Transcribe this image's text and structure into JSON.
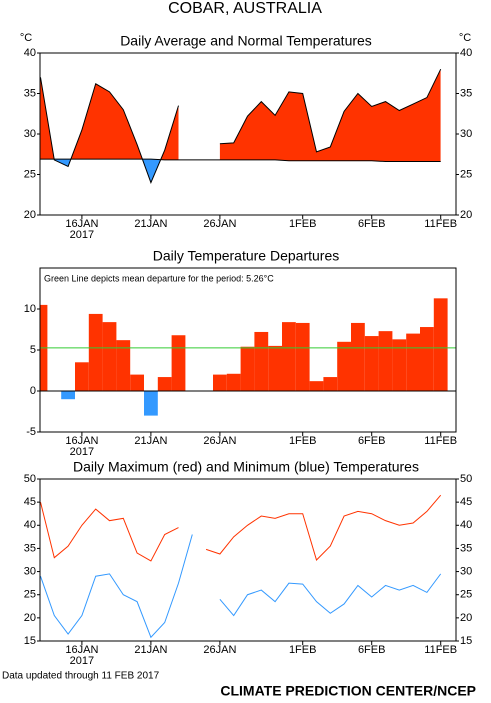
{
  "title": "COBAR, AUSTRALIA",
  "footer_note": "Data updated through 11 FEB 2017",
  "footer_credit": "CLIMATE PREDICTION CENTER/NCEP",
  "chart_data": [
    {
      "type": "departure_area",
      "title": "Daily Average and Normal Temperatures",
      "y_unit_label": "°C",
      "categories": [
        null,
        null,
        null,
        "16JAN",
        null,
        null,
        null,
        null,
        "21JAN",
        null,
        null,
        null,
        null,
        "26JAN",
        null,
        null,
        null,
        null,
        null,
        "1FEB",
        null,
        null,
        null,
        null,
        "6FEB",
        null,
        null,
        null,
        null,
        "11FEB"
      ],
      "year_label": "2017",
      "series": [
        {
          "color": "#000000",
          "values": [
            37,
            26.8,
            26,
            30.5,
            36.2,
            35.2,
            33,
            28.7,
            24,
            28,
            33.5,
            null,
            null,
            28.8,
            28.9,
            32.2,
            34,
            32.3,
            35.2,
            35,
            27.8,
            28.4,
            32.8,
            35,
            33.4,
            34,
            32.9,
            33.7,
            34.5,
            38
          ]
        },
        {
          "color": "#000000",
          "values": [
            26.9,
            26.9,
            26.9,
            26.9,
            26.9,
            26.9,
            26.9,
            26.9,
            26.9,
            26.8,
            26.8,
            26.8,
            26.8,
            26.8,
            26.8,
            26.8,
            26.8,
            26.8,
            26.7,
            26.7,
            26.7,
            26.7,
            26.7,
            26.7,
            26.7,
            26.6,
            26.6,
            26.6,
            26.6,
            26.6
          ]
        }
      ],
      "above_color": "#ff3300",
      "below_color": "#3399ff",
      "ylim": [
        20,
        40
      ],
      "yticks": [
        20,
        25,
        30,
        35,
        40
      ],
      "right_axis": true
    },
    {
      "type": "bar",
      "title": "Daily Temperature Departures",
      "annotation": "Green Line depicts mean departure for the period: 5.26°C",
      "mean_departure": 5.26,
      "mean_color": "#33cc33",
      "categories": [
        null,
        null,
        null,
        "16JAN",
        null,
        null,
        null,
        null,
        "21JAN",
        null,
        null,
        null,
        null,
        "26JAN",
        null,
        null,
        null,
        null,
        null,
        "1FEB",
        null,
        null,
        null,
        null,
        "6FEB",
        null,
        null,
        null,
        null,
        "11FEB"
      ],
      "year_label": "2017",
      "values": [
        10.5,
        0,
        -1,
        3.5,
        9.4,
        8.4,
        6.2,
        2,
        -3,
        1.7,
        6.8,
        null,
        null,
        2,
        2.1,
        5.4,
        7.2,
        5.5,
        8.4,
        8.3,
        1.2,
        1.7,
        6,
        8.3,
        6.7,
        7.3,
        6.3,
        7,
        7.8,
        11.3
      ],
      "positive_color": "#ff3300",
      "negative_color": "#3399ff",
      "ylim": [
        -5,
        15
      ],
      "yticks": [
        -5,
        0,
        5,
        10
      ],
      "right_axis": false
    },
    {
      "type": "line",
      "title": "Daily Maximum (red) and Minimum (blue) Temperatures",
      "categories": [
        null,
        null,
        null,
        "16JAN",
        null,
        null,
        null,
        null,
        "21JAN",
        null,
        null,
        null,
        null,
        "26JAN",
        null,
        null,
        null,
        null,
        null,
        "1FEB",
        null,
        null,
        null,
        null,
        "6FEB",
        null,
        null,
        null,
        null,
        "11FEB"
      ],
      "year_label": "2017",
      "series": [
        {
          "color": "#ff3300",
          "values": [
            45,
            33,
            35.5,
            40,
            43.5,
            41,
            41.5,
            34,
            32.3,
            38,
            39.5,
            null,
            34.8,
            33.8,
            37.5,
            40,
            42,
            41.5,
            42.5,
            42.5,
            32.5,
            35.5,
            42,
            43,
            42.5,
            41,
            40,
            40.5,
            43,
            46.5
          ]
        },
        {
          "color": "#3399ff",
          "values": [
            29,
            20.5,
            16.5,
            20.5,
            29,
            29.5,
            25,
            23.5,
            15.8,
            19,
            27.5,
            38,
            null,
            24,
            20.5,
            25,
            26,
            23.5,
            27.5,
            27.3,
            23.5,
            21,
            23,
            27,
            24.5,
            27,
            26,
            27,
            25.5,
            29.5
          ]
        }
      ],
      "ylim": [
        15,
        50
      ],
      "yticks": [
        15,
        20,
        25,
        30,
        35,
        40,
        45,
        50
      ],
      "right_axis": true
    }
  ]
}
